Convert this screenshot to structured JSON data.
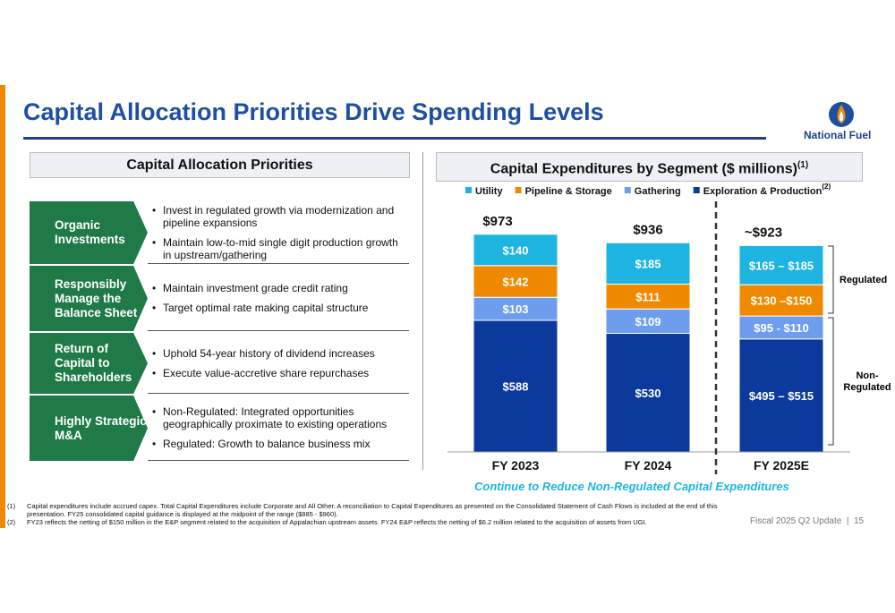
{
  "title": "Capital Allocation Priorities Drive Spending Levels",
  "logo": "National Fuel",
  "left": {
    "header": "Capital Allocation Priorities",
    "rows": [
      {
        "label": "Organic Investments",
        "bullets": [
          "Invest in regulated growth via modernization and pipeline expansions",
          "Maintain low-to-mid single digit production growth in upstream/gathering"
        ]
      },
      {
        "label": "Responsibly Manage the Balance Sheet",
        "bullets": [
          "Maintain investment grade credit rating",
          "Target optimal rate making capital structure"
        ]
      },
      {
        "label": "Return of Capital to Shareholders",
        "bullets": [
          "Uphold 54-year history of dividend increases",
          "Execute value-accretive share repurchases"
        ]
      },
      {
        "label": "Highly Strategic M&A",
        "bullets": [
          "Non-Regulated: Integrated opportunities geographically proximate to existing operations",
          "Regulated: Growth to balance business mix"
        ]
      }
    ]
  },
  "chart_data": {
    "type": "stacked_bar",
    "title": "Capital Expenditures by Segment ($ millions)",
    "title_note": "(1)",
    "categories": [
      "FY 2023",
      "FY 2024",
      "FY 2025E"
    ],
    "series": [
      {
        "name": "Utility",
        "color": "#1db4e2",
        "values": [
          140,
          185,
          175
        ],
        "value_labels": [
          "$140",
          "$185",
          "$165 – $185"
        ]
      },
      {
        "name": "Pipeline & Storage",
        "color": "#ef8a00",
        "values": [
          142,
          111,
          140
        ],
        "value_labels": [
          "$142",
          "$111",
          "$130 –$150"
        ]
      },
      {
        "name": "Gathering",
        "color": "#6f9ded",
        "values": [
          103,
          109,
          102.5
        ],
        "value_labels": [
          "$103",
          "$109",
          "$95 - $110"
        ]
      },
      {
        "name": "Exploration & Production",
        "color": "#0b3a9c",
        "values": [
          588,
          530,
          505
        ],
        "value_labels": [
          "$588",
          "$530",
          "$495 – $515"
        ],
        "note": "(2)"
      }
    ],
    "totals": [
      973,
      936,
      923
    ],
    "total_labels": [
      "$973",
      "$936",
      "~$923"
    ],
    "brackets": [
      "Regulated",
      "Non-Regulated"
    ],
    "annotation": "Continue to Reduce Non-Regulated Capital Expenditures"
  },
  "footnotes": [
    {
      "marker": "(1)",
      "text": "Capital expenditures include accrued capex. Total Capital Expenditures include Corporate and All Other. A reconciliation to Capital Expenditures as presented on the Consolidated Statement of Cash Flows is included at the end of this presentation. FY25 consolidated capital guidance is displayed at the midpoint of the range ($885 - $960)."
    },
    {
      "marker": "(2)",
      "text": "FY23 reflects the netting of $150 million in the E&P segment related to the acquisition of Appalachian upstream assets. FY24 E&P reflects the netting of $6.2 million related to the acquisition of assets from UGI."
    }
  ],
  "footer": {
    "text": "Fiscal 2025 Q2 Update",
    "page": "15"
  }
}
